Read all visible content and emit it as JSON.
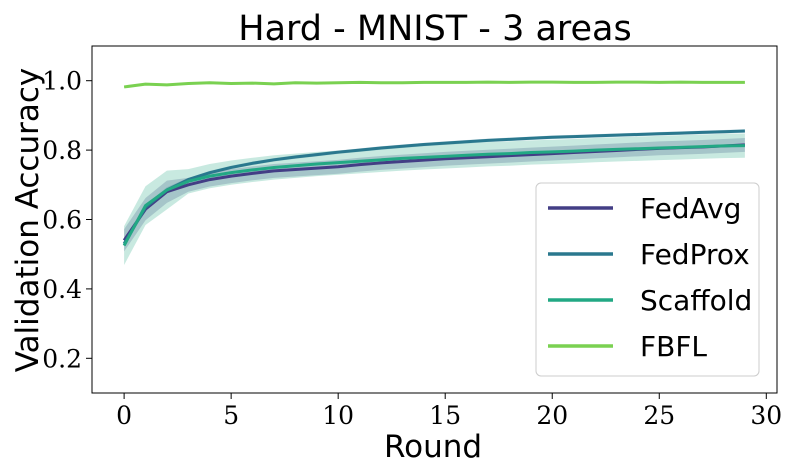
{
  "chart_data": {
    "type": "line",
    "title": "Hard - MNIST - 3 areas",
    "xlabel": "Round",
    "ylabel": "Validation Accuracy",
    "xlim": [
      -1.5,
      30.5
    ],
    "ylim": [
      0.1,
      1.1
    ],
    "xticks": [
      0,
      5,
      10,
      15,
      20,
      25,
      30
    ],
    "yticks": [
      0.2,
      0.4,
      0.6,
      0.8,
      1.0
    ],
    "xtick_labels": [
      "0",
      "5",
      "10",
      "15",
      "20",
      "25",
      "30"
    ],
    "ytick_labels": [
      "0.2",
      "0.4",
      "0.6",
      "0.8",
      "1.0"
    ],
    "grid": false,
    "legend_position": "lower-right",
    "x": [
      0,
      1,
      2,
      3,
      4,
      5,
      6,
      7,
      8,
      9,
      10,
      11,
      12,
      13,
      14,
      15,
      16,
      17,
      18,
      19,
      20,
      21,
      22,
      23,
      24,
      25,
      26,
      27,
      28,
      29
    ],
    "series": [
      {
        "name": "FedAvg",
        "color": "#433e85",
        "values": [
          0.54,
          0.63,
          0.68,
          0.7,
          0.715,
          0.725,
          0.733,
          0.74,
          0.744,
          0.748,
          0.752,
          0.758,
          0.763,
          0.767,
          0.771,
          0.775,
          0.778,
          0.781,
          0.784,
          0.787,
          0.79,
          0.793,
          0.796,
          0.799,
          0.802,
          0.805,
          0.807,
          0.809,
          0.812,
          0.815
        ],
        "band": 0.02
      },
      {
        "name": "FedProx",
        "color": "#2a788e",
        "values": [
          0.53,
          0.635,
          0.685,
          0.715,
          0.735,
          0.75,
          0.762,
          0.772,
          0.78,
          0.787,
          0.794,
          0.8,
          0.806,
          0.811,
          0.816,
          0.82,
          0.824,
          0.828,
          0.831,
          0.834,
          0.837,
          0.839,
          0.841,
          0.843,
          0.845,
          0.847,
          0.849,
          0.851,
          0.853,
          0.855
        ],
        "band": 0.005
      },
      {
        "name": "Scaffold",
        "color": "#22a884",
        "values": [
          0.525,
          0.64,
          0.685,
          0.71,
          0.725,
          0.735,
          0.743,
          0.75,
          0.755,
          0.76,
          0.764,
          0.768,
          0.772,
          0.776,
          0.779,
          0.782,
          0.785,
          0.788,
          0.79,
          0.793,
          0.795,
          0.797,
          0.8,
          0.802,
          0.804,
          0.806,
          0.808,
          0.81,
          0.812,
          0.813
        ],
        "band": 0.035
      },
      {
        "name": "FBFL",
        "color": "#7ad151",
        "values": [
          0.982,
          0.99,
          0.988,
          0.992,
          0.994,
          0.992,
          0.993,
          0.991,
          0.994,
          0.993,
          0.994,
          0.995,
          0.994,
          0.994,
          0.995,
          0.995,
          0.995,
          0.996,
          0.995,
          0.996,
          0.996,
          0.995,
          0.995,
          0.996,
          0.996,
          0.995,
          0.996,
          0.995,
          0.995,
          0.995
        ],
        "band": 0.002
      }
    ]
  }
}
